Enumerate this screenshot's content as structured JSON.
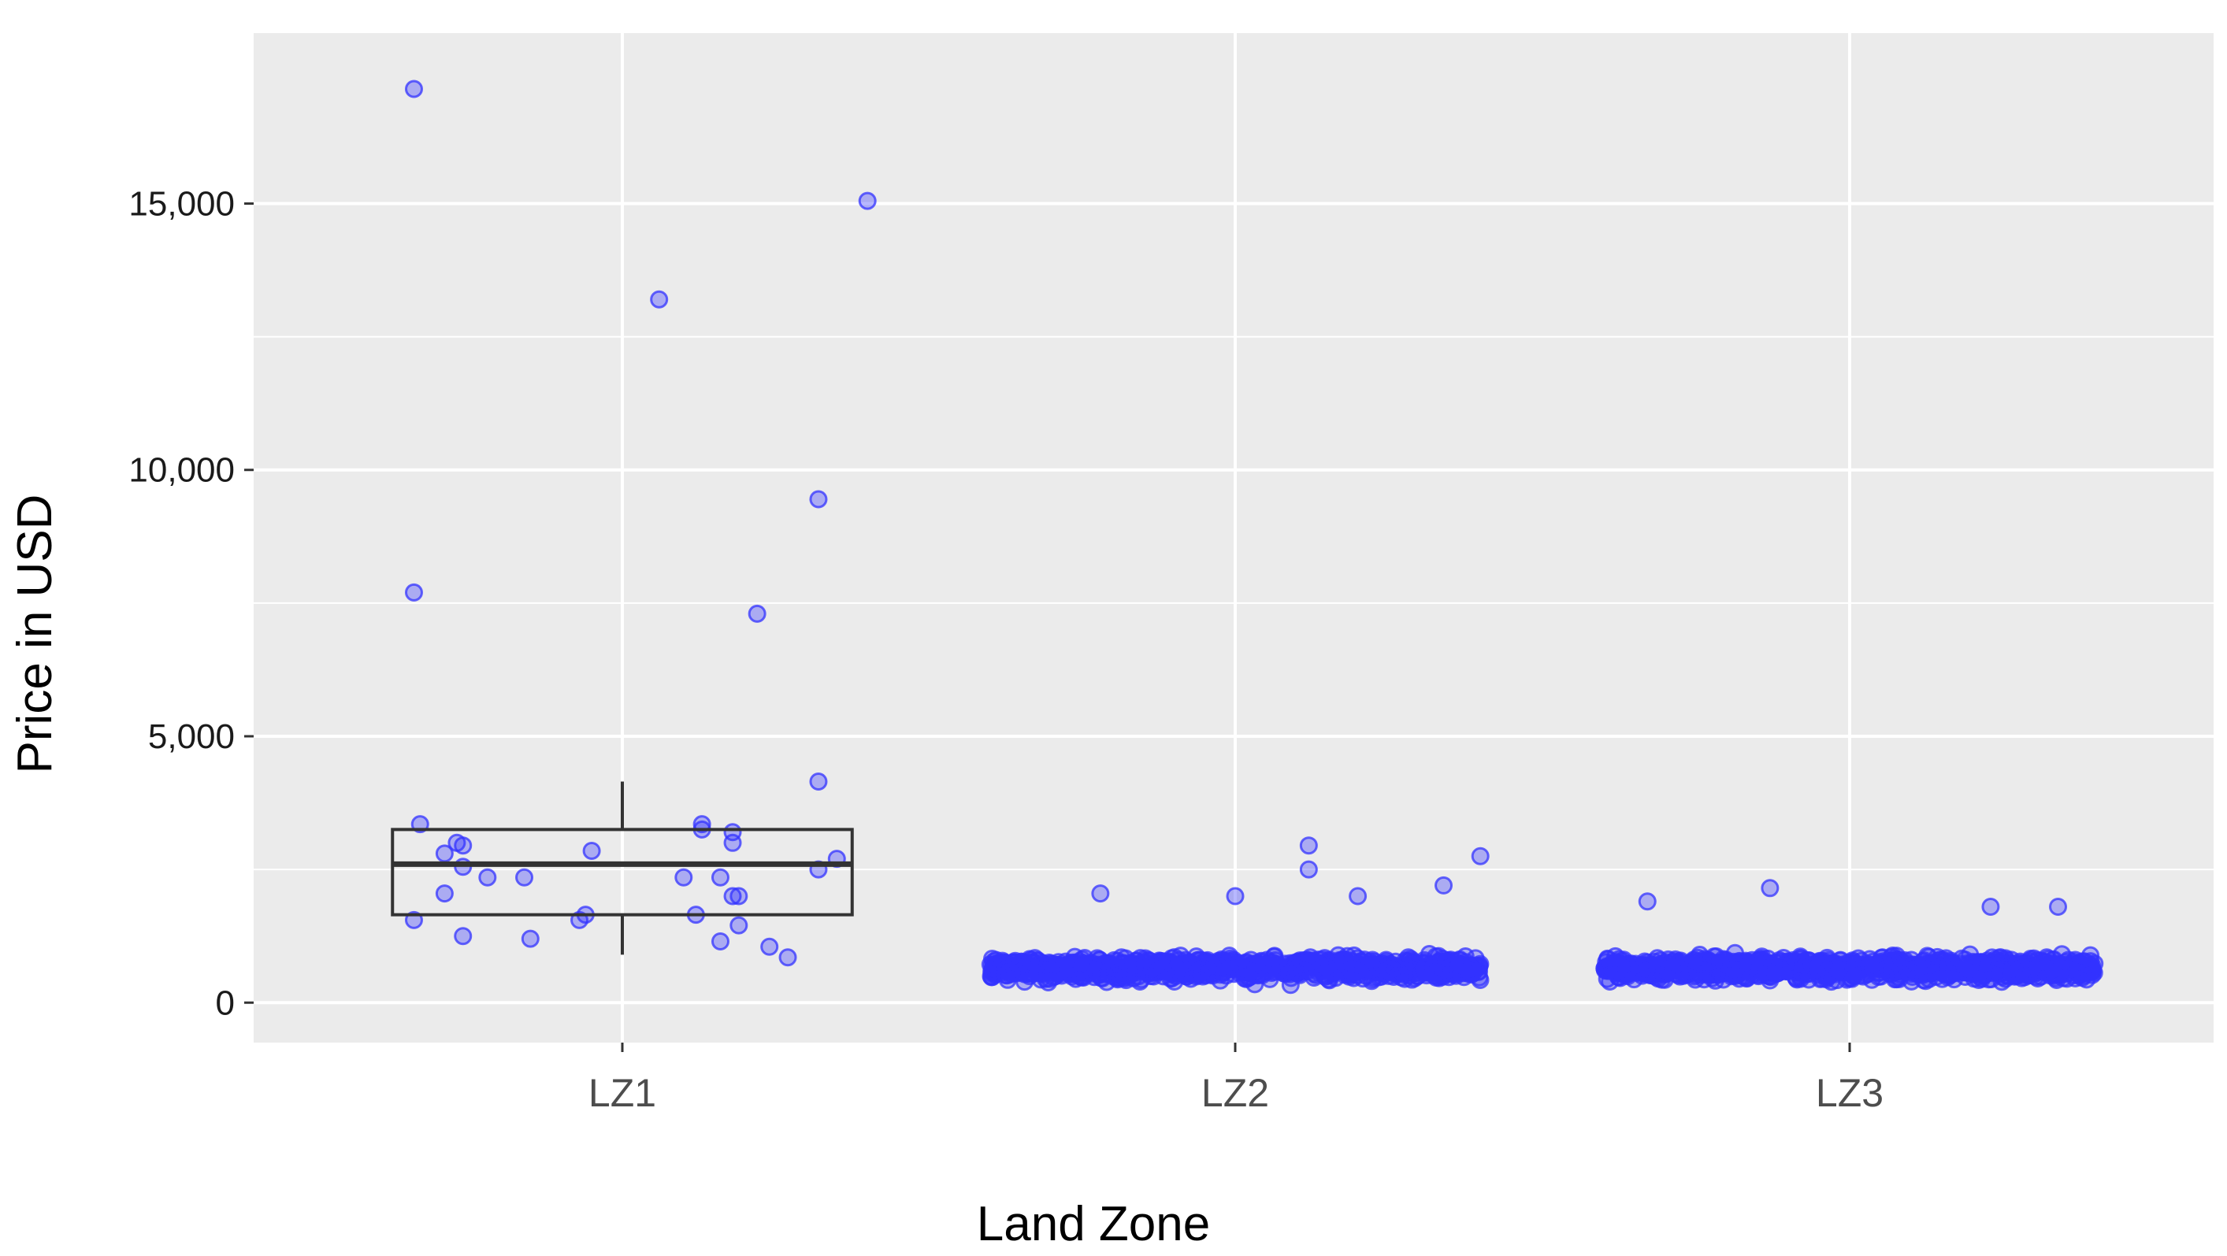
{
  "chart_data": {
    "type": "scatter",
    "subtype": "jittered scatter with boxplot overlay",
    "title": "",
    "xlabel": "Land Zone",
    "ylabel": "Price in USD",
    "categories": [
      "LZ1",
      "LZ2",
      "LZ3"
    ],
    "ylim": [
      -750,
      18200
    ],
    "yticks": [
      0,
      5000,
      10000,
      15000
    ],
    "ytick_labels": [
      "0",
      "5,000",
      "10,000",
      "15,000"
    ],
    "grid": true,
    "panel_background": "#EBEBEB",
    "point_color": "#3333FF",
    "boxplot": {
      "category": "LZ1",
      "q1": 1650,
      "median": 2600,
      "q3": 3250,
      "whisker_low": 900,
      "whisker_high": 4150
    },
    "points_explicit": [
      {
        "category": "LZ1",
        "offset": -0.34,
        "value": 17150
      },
      {
        "category": "LZ1",
        "offset": -0.34,
        "value": 7700
      },
      {
        "category": "LZ1",
        "offset": -0.33,
        "value": 3350
      },
      {
        "category": "LZ1",
        "offset": -0.34,
        "value": 1550
      },
      {
        "category": "LZ1",
        "offset": -0.29,
        "value": 2800
      },
      {
        "category": "LZ1",
        "offset": -0.26,
        "value": 2950
      },
      {
        "category": "LZ1",
        "offset": -0.27,
        "value": 3000
      },
      {
        "category": "LZ1",
        "offset": -0.26,
        "value": 2550
      },
      {
        "category": "LZ1",
        "offset": -0.29,
        "value": 2050
      },
      {
        "category": "LZ1",
        "offset": -0.26,
        "value": 1250
      },
      {
        "category": "LZ1",
        "offset": -0.22,
        "value": 2350
      },
      {
        "category": "LZ1",
        "offset": -0.16,
        "value": 2350
      },
      {
        "category": "LZ1",
        "offset": -0.15,
        "value": 1200
      },
      {
        "category": "LZ1",
        "offset": -0.07,
        "value": 1550
      },
      {
        "category": "LZ1",
        "offset": -0.06,
        "value": 1650
      },
      {
        "category": "LZ1",
        "offset": -0.05,
        "value": 2850
      },
      {
        "category": "LZ1",
        "offset": 0.06,
        "value": 13200
      },
      {
        "category": "LZ1",
        "offset": 0.1,
        "value": 2350
      },
      {
        "category": "LZ1",
        "offset": 0.12,
        "value": 1650
      },
      {
        "category": "LZ1",
        "offset": 0.13,
        "value": 3250
      },
      {
        "category": "LZ1",
        "offset": 0.13,
        "value": 3350
      },
      {
        "category": "LZ1",
        "offset": 0.16,
        "value": 2350
      },
      {
        "category": "LZ1",
        "offset": 0.16,
        "value": 1150
      },
      {
        "category": "LZ1",
        "offset": 0.18,
        "value": 2000
      },
      {
        "category": "LZ1",
        "offset": 0.18,
        "value": 3000
      },
      {
        "category": "LZ1",
        "offset": 0.18,
        "value": 3200
      },
      {
        "category": "LZ1",
        "offset": 0.19,
        "value": 2000
      },
      {
        "category": "LZ1",
        "offset": 0.19,
        "value": 1450
      },
      {
        "category": "LZ1",
        "offset": 0.22,
        "value": 7300
      },
      {
        "category": "LZ1",
        "offset": 0.24,
        "value": 1050
      },
      {
        "category": "LZ1",
        "offset": 0.27,
        "value": 850
      },
      {
        "category": "LZ1",
        "offset": 0.32,
        "value": 9450
      },
      {
        "category": "LZ1",
        "offset": 0.32,
        "value": 4150
      },
      {
        "category": "LZ1",
        "offset": 0.32,
        "value": 2500
      },
      {
        "category": "LZ1",
        "offset": 0.35,
        "value": 2700
      },
      {
        "category": "LZ1",
        "offset": 0.4,
        "value": 15050
      },
      {
        "category": "LZ2",
        "offset": 0.12,
        "value": 2950
      },
      {
        "category": "LZ2",
        "offset": 0.12,
        "value": 2500
      },
      {
        "category": "LZ2",
        "offset": 0.4,
        "value": 2750
      },
      {
        "category": "LZ2",
        "offset": 0.34,
        "value": 2200
      },
      {
        "category": "LZ2",
        "offset": 0.2,
        "value": 2000
      },
      {
        "category": "LZ2",
        "offset": 0.0,
        "value": 2000
      },
      {
        "category": "LZ2",
        "offset": -0.22,
        "value": 2050
      },
      {
        "category": "LZ3",
        "offset": -0.13,
        "value": 2150
      },
      {
        "category": "LZ3",
        "offset": 0.34,
        "value": 1800
      },
      {
        "category": "LZ3",
        "offset": 0.23,
        "value": 1800
      },
      {
        "category": "LZ3",
        "offset": -0.33,
        "value": 1900
      }
    ],
    "point_clouds": [
      {
        "category": "LZ2",
        "count": 1100,
        "offset_range": [
          -0.4,
          0.4
        ],
        "value_range": [
          100,
          1900
        ],
        "median": 650
      },
      {
        "category": "LZ3",
        "count": 1100,
        "offset_range": [
          -0.4,
          0.4
        ],
        "value_range": [
          50,
          1600
        ],
        "median": 650
      }
    ]
  }
}
